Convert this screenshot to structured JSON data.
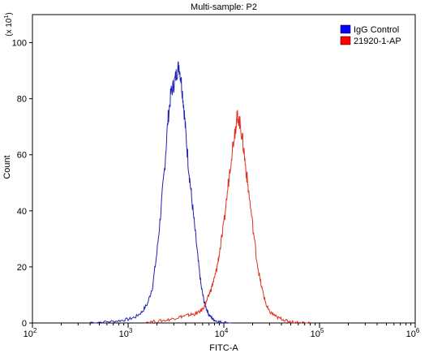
{
  "chart_data": {
    "type": "line",
    "title": "Multi-sample: P2",
    "xlabel": "FITC-A",
    "ylabel": "Count",
    "y_multiplier_label": "(x 10^1)",
    "x_scale": "log",
    "xlim": [
      100,
      1000000
    ],
    "ylim": [
      0,
      110
    ],
    "x_ticks": [
      {
        "value": 100,
        "base": "10",
        "exp": "2"
      },
      {
        "value": 1000,
        "base": "10",
        "exp": "3"
      },
      {
        "value": 10000,
        "base": "10",
        "exp": "4"
      },
      {
        "value": 100000,
        "base": "10",
        "exp": "5"
      },
      {
        "value": 1000000,
        "base": "10",
        "exp": "6"
      }
    ],
    "y_ticks": [
      0,
      20,
      40,
      60,
      80,
      100
    ],
    "grid": false,
    "legend_position": "top-right",
    "series": [
      {
        "name": "IgG Control",
        "color": "#1f1fb4",
        "legend_color": "#0000ff",
        "x": [
          400,
          600,
          800,
          1000,
          1200,
          1400,
          1600,
          1800,
          2000,
          2200,
          2400,
          2600,
          2800,
          3000,
          3200,
          3400,
          3600,
          3800,
          4000,
          4300,
          4600,
          5000,
          5400,
          5800,
          6200,
          6600,
          7000,
          7500,
          8000,
          9000,
          10000,
          12000
        ],
        "y": [
          0.2,
          0.4,
          0.8,
          1.3,
          2.2,
          4,
          7,
          13,
          25,
          40,
          55,
          72,
          82,
          85,
          89,
          92,
          86,
          78,
          68,
          55,
          45,
          33,
          22,
          13,
          8,
          5,
          3,
          1.7,
          1,
          0.4,
          0.2,
          0
        ]
      },
      {
        "name": "21920-1-AP",
        "color": "#e0301e",
        "legend_color": "#ff0000",
        "x": [
          1500,
          2000,
          2500,
          3000,
          3500,
          4000,
          4500,
          5000,
          5500,
          6000,
          6500,
          7000,
          7500,
          8000,
          8500,
          9000,
          10000,
          11000,
          12000,
          13000,
          13500,
          14000,
          15000,
          16000,
          17000,
          18000,
          20000,
          22000,
          24000,
          26000,
          28000,
          30000,
          33000,
          36000,
          40000,
          45000,
          50000,
          60000,
          80000
        ],
        "y": [
          0.3,
          0.6,
          1,
          1.6,
          2.2,
          2.6,
          3,
          3.2,
          3.8,
          5,
          7,
          10,
          13,
          16,
          20,
          25,
          35,
          48,
          60,
          68,
          72,
          74,
          70,
          63,
          55,
          48,
          35,
          23,
          15,
          10,
          6,
          4,
          3,
          2,
          1.5,
          0.8,
          0.4,
          0.2,
          0
        ]
      }
    ]
  }
}
